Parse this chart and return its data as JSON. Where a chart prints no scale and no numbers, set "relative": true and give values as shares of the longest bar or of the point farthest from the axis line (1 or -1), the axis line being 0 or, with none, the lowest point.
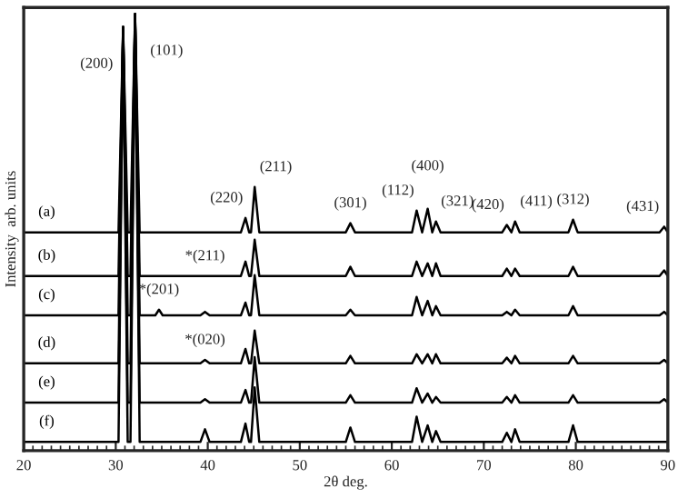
{
  "chart_data": {
    "type": "line",
    "relative": true,
    "xlabel": "2θ deg.",
    "ylabel": "Intensity  arb. units",
    "xlim": [
      20,
      90
    ],
    "xticks": [
      20,
      30,
      40,
      50,
      60,
      70,
      80,
      90
    ],
    "grid": false,
    "legend": false,
    "marker": "none",
    "line_style": "solid",
    "x": [
      20,
      25,
      30.3,
      30.8,
      31.3,
      31.6,
      32.1,
      32.6,
      34.3,
      34.7,
      35.1,
      39.2,
      39.7,
      40.2,
      43.6,
      44.1,
      44.5,
      44.7,
      45.1,
      45.6,
      55.0,
      55.5,
      56.0,
      62.2,
      62.7,
      63.3,
      63.9,
      64.4,
      64.8,
      65.3,
      72.0,
      72.5,
      73.0,
      73.4,
      73.9,
      79.2,
      79.7,
      80.2,
      89.1,
      89.6,
      90
    ],
    "series": [
      {
        "name": "(a)",
        "color": "#000000",
        "values": [
          0.5,
          0.5,
          0.5,
          0.97,
          0.5,
          0.5,
          1.0,
          0.5,
          0.5,
          0.5,
          0.5,
          0.5,
          0.5,
          0.5,
          0.5,
          0.533,
          0.5,
          0.5,
          0.604,
          0.5,
          0.5,
          0.521,
          0.5,
          0.5,
          0.55,
          0.5,
          0.554,
          0.5,
          0.525,
          0.5,
          0.5,
          0.517,
          0.5,
          0.525,
          0.5,
          0.5,
          0.529,
          0.5,
          0.5,
          0.513,
          0.5
        ]
      },
      {
        "name": "(b)",
        "color": "#000000",
        "values": [
          0.4,
          0.4,
          0.4,
          0.97,
          0.4,
          0.4,
          1.0,
          0.4,
          0.4,
          0.4,
          0.4,
          0.4,
          0.4,
          0.4,
          0.4,
          0.433,
          0.4,
          0.4,
          0.483,
          0.4,
          0.4,
          0.421,
          0.4,
          0.4,
          0.433,
          0.4,
          0.429,
          0.4,
          0.429,
          0.4,
          0.4,
          0.417,
          0.4,
          0.417,
          0.4,
          0.4,
          0.421,
          0.4,
          0.4,
          0.413,
          0.4
        ]
      },
      {
        "name": "(c)",
        "color": "#000000",
        "values": [
          0.31,
          0.31,
          0.31,
          0.97,
          0.31,
          0.31,
          1.0,
          0.31,
          0.31,
          0.323,
          0.31,
          0.31,
          0.318,
          0.31,
          0.31,
          0.339,
          0.31,
          0.31,
          0.402,
          0.31,
          0.31,
          0.323,
          0.31,
          0.31,
          0.352,
          0.31,
          0.343,
          0.31,
          0.331,
          0.31,
          0.31,
          0.318,
          0.31,
          0.323,
          0.31,
          0.31,
          0.331,
          0.31,
          0.31,
          0.318,
          0.31
        ]
      },
      {
        "name": "(d)",
        "color": "#000000",
        "values": [
          0.2,
          0.2,
          0.2,
          0.97,
          0.2,
          0.2,
          1.0,
          0.2,
          0.2,
          0.2,
          0.2,
          0.2,
          0.208,
          0.2,
          0.2,
          0.233,
          0.2,
          0.2,
          0.275,
          0.2,
          0.2,
          0.217,
          0.2,
          0.2,
          0.221,
          0.2,
          0.221,
          0.2,
          0.221,
          0.2,
          0.2,
          0.213,
          0.2,
          0.217,
          0.2,
          0.2,
          0.217,
          0.2,
          0.2,
          0.208,
          0.2
        ]
      },
      {
        "name": "(e)",
        "color": "#000000",
        "values": [
          0.11,
          0.11,
          0.11,
          0.97,
          0.11,
          0.11,
          1.0,
          0.11,
          0.11,
          0.11,
          0.11,
          0.11,
          0.118,
          0.11,
          0.11,
          0.139,
          0.11,
          0.11,
          0.214,
          0.11,
          0.11,
          0.127,
          0.11,
          0.11,
          0.143,
          0.11,
          0.131,
          0.11,
          0.123,
          0.11,
          0.11,
          0.123,
          0.11,
          0.127,
          0.11,
          0.11,
          0.127,
          0.11,
          0.11,
          0.118,
          0.11
        ]
      },
      {
        "name": "(f)",
        "color": "#000000",
        "values": [
          0.02,
          0.02,
          0.02,
          0.97,
          0.02,
          0.02,
          1.0,
          0.02,
          0.02,
          0.02,
          0.02,
          0.02,
          0.049,
          0.02,
          0.02,
          0.062,
          0.02,
          0.02,
          0.145,
          0.02,
          0.02,
          0.053,
          0.02,
          0.02,
          0.078,
          0.02,
          0.058,
          0.02,
          0.045,
          0.02,
          0.02,
          0.041,
          0.02,
          0.049,
          0.02,
          0.02,
          0.058,
          0.02,
          0.02,
          0.02,
          0.02
        ]
      }
    ],
    "annotations": [
      {
        "text": "(200)",
        "x": 30.8,
        "y": 0.97
      },
      {
        "text": "(101)",
        "x": 32.1,
        "y": 1.0
      },
      {
        "text": "(220)",
        "x": 44.1,
        "y": 0.533
      },
      {
        "text": "(211)",
        "x": 45.1,
        "y": 0.604
      },
      {
        "text": "(301)",
        "x": 55.5,
        "y": 0.521
      },
      {
        "text": "(112)",
        "x": 62.7,
        "y": 0.55
      },
      {
        "text": "(400)",
        "x": 63.9,
        "y": 0.554
      },
      {
        "text": "(321)",
        "x": 64.8,
        "y": 0.525
      },
      {
        "text": "(420)",
        "x": 72.5,
        "y": 0.517
      },
      {
        "text": "(411)",
        "x": 73.4,
        "y": 0.525
      },
      {
        "text": "(312)",
        "x": 79.7,
        "y": 0.529
      },
      {
        "text": "(431)",
        "x": 89.6,
        "y": 0.513
      },
      {
        "text": "*(211)",
        "x": 39.7,
        "y": 0.4
      },
      {
        "text": "*(201)",
        "x": 34.7,
        "y": 0.323
      },
      {
        "text": "*(020)",
        "x": 39.7,
        "y": 0.208
      }
    ]
  }
}
